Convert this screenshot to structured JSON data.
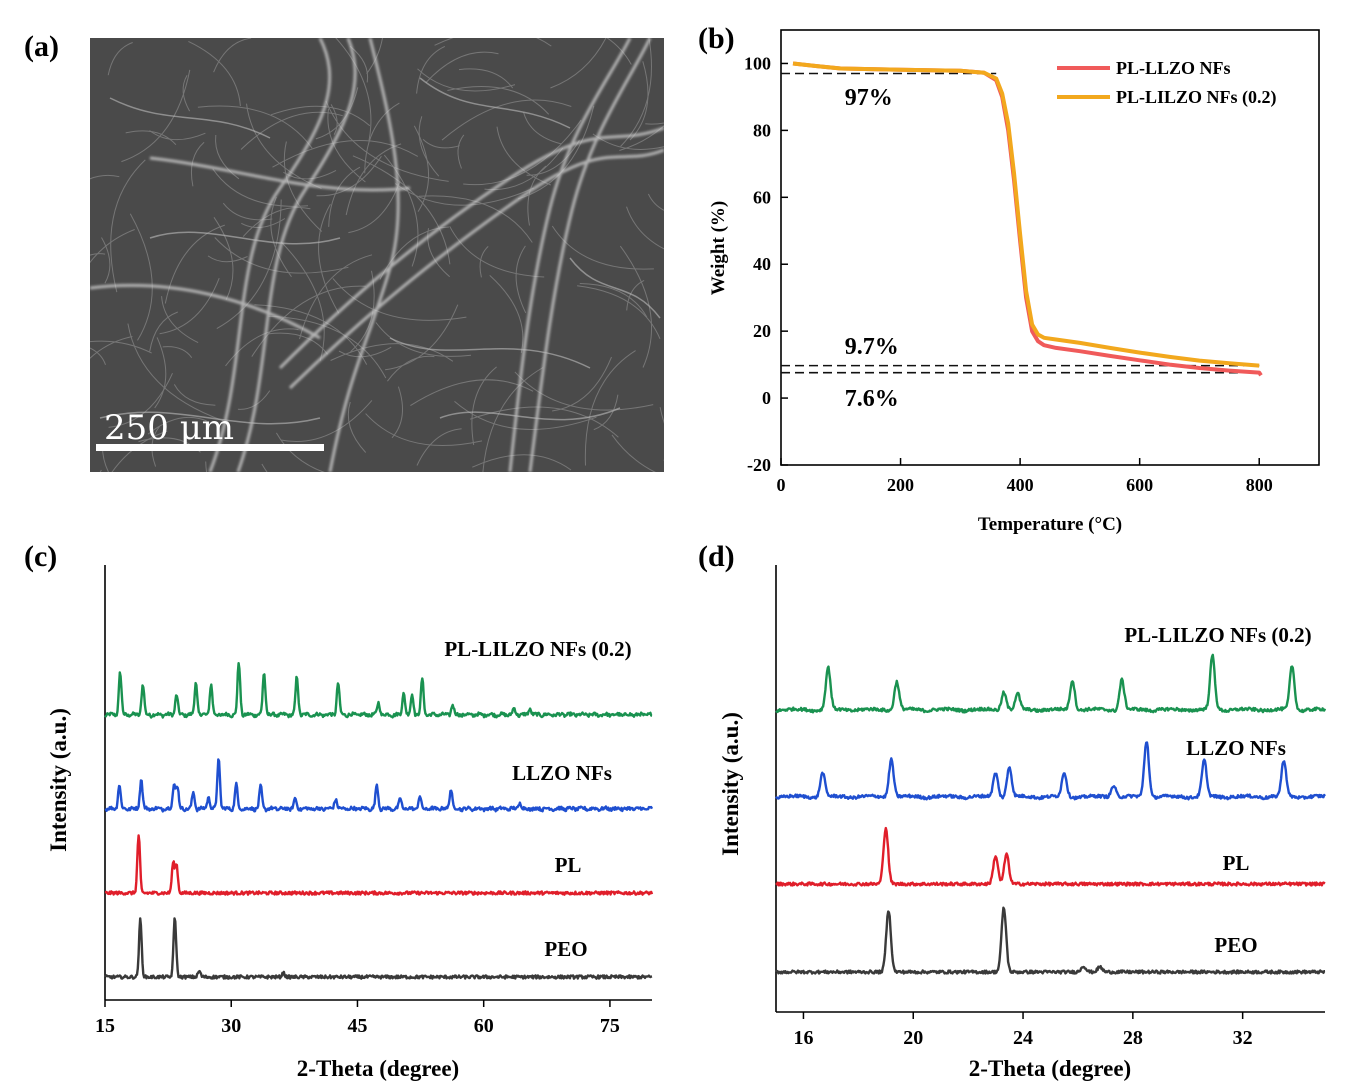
{
  "panels": {
    "a": "(a)",
    "b": "(b)",
    "c": "(c)",
    "d": "(d)"
  },
  "sem": {
    "scale_label": "250 μm"
  },
  "colors": {
    "red": "#f05a5a",
    "orange": "#f2a81d",
    "green": "#1a9250",
    "blue": "#1f4fd0",
    "xrd_red": "#e01e2a",
    "gray": "#3a3a3a"
  },
  "chart_data": [
    {
      "id": "b",
      "type": "line",
      "xlabel": "Temperature (°C)",
      "ylabel": "Weight (%)",
      "xlim": [
        0,
        900
      ],
      "ylim": [
        -20,
        110
      ],
      "xticks": [
        0,
        200,
        400,
        600,
        800
      ],
      "yticks": [
        -20,
        0,
        20,
        40,
        60,
        80,
        100
      ],
      "legend_position": "top-right",
      "series": [
        {
          "name": "PL-LLZO NFs",
          "color": "#f05a5a",
          "x": [
            20,
            60,
            100,
            150,
            200,
            250,
            300,
            340,
            360,
            370,
            380,
            390,
            400,
            410,
            420,
            430,
            440,
            460,
            500,
            550,
            600,
            650,
            700,
            750,
            800,
            803
          ],
          "y": [
            100,
            99.2,
            98.5,
            98.3,
            98.1,
            98,
            97.8,
            97.2,
            95,
            90,
            80,
            65,
            47,
            30,
            20,
            17,
            15.8,
            15,
            14,
            12.6,
            11.3,
            10,
            9,
            8.2,
            7.6,
            6.8
          ]
        },
        {
          "name": "PL-LILZO NFs (0.2)",
          "color": "#f2a81d",
          "x": [
            20,
            60,
            100,
            150,
            200,
            250,
            300,
            340,
            360,
            370,
            380,
            390,
            400,
            410,
            420,
            430,
            440,
            460,
            500,
            550,
            600,
            650,
            700,
            750,
            800
          ],
          "y": [
            100,
            99.2,
            98.5,
            98.3,
            98.1,
            98,
            97.8,
            97.2,
            95.5,
            91,
            82,
            67,
            49,
            32,
            22,
            19,
            18,
            17.5,
            16.5,
            15,
            13.6,
            12.3,
            11.2,
            10.4,
            9.7
          ]
        }
      ],
      "reference_lines": [
        97,
        9.7,
        7.6
      ],
      "annotations": [
        {
          "text": "97%",
          "x": 130,
          "y": 90
        },
        {
          "text": "9.7%",
          "x": 130,
          "y": 15.5
        },
        {
          "text": "7.6%",
          "x": 130,
          "y": 0
        }
      ]
    },
    {
      "id": "c",
      "type": "line",
      "xlabel": "2-Theta (degree)",
      "ylabel": "Intensity (a.u.)",
      "xlim": [
        15,
        80
      ],
      "xticks": [
        15,
        30,
        45,
        60,
        75
      ],
      "series": [
        {
          "name": "PL-LILZO NFs (0.2)",
          "color": "#1a9250",
          "peaks": [
            [
              16.8,
              42
            ],
            [
              19.5,
              30
            ],
            [
              23.5,
              20
            ],
            [
              25.8,
              32
            ],
            [
              27.6,
              30
            ],
            [
              30.9,
              52
            ],
            [
              33.9,
              42
            ],
            [
              37.8,
              38
            ],
            [
              42.7,
              32
            ],
            [
              47.5,
              12
            ],
            [
              50.5,
              22
            ],
            [
              51.5,
              20
            ],
            [
              52.7,
              36
            ],
            [
              56.3,
              10
            ],
            [
              63.6,
              6
            ],
            [
              65.5,
              6
            ]
          ]
        },
        {
          "name": "LLZO NFs",
          "color": "#1f4fd0",
          "peaks": [
            [
              16.7,
              24
            ],
            [
              19.3,
              30
            ],
            [
              23.2,
              24
            ],
            [
              23.6,
              22
            ],
            [
              25.5,
              16
            ],
            [
              27.3,
              12
            ],
            [
              28.5,
              50
            ],
            [
              30.6,
              24
            ],
            [
              33.5,
              22
            ],
            [
              37.6,
              10
            ],
            [
              42.4,
              10
            ],
            [
              47.3,
              24
            ],
            [
              50.1,
              10
            ],
            [
              52.4,
              12
            ],
            [
              56.1,
              20
            ],
            [
              64.3,
              6
            ]
          ]
        },
        {
          "name": "PL",
          "color": "#e01e2a",
          "peaks": [
            [
              19.0,
              58
            ],
            [
              23.1,
              30
            ],
            [
              23.5,
              28
            ]
          ]
        },
        {
          "name": "PEO",
          "color": "#3a3a3a",
          "peaks": [
            [
              19.2,
              58
            ],
            [
              23.3,
              60
            ],
            [
              26.2,
              6
            ],
            [
              36.2,
              4
            ]
          ]
        }
      ]
    },
    {
      "id": "d",
      "type": "line",
      "xlabel": "2-Theta (degree)",
      "ylabel": "Intensity (a.u.)",
      "xlim": [
        15,
        35
      ],
      "xticks": [
        16,
        20,
        24,
        28,
        32
      ],
      "series": [
        {
          "name": "PL-LILZO NFs (0.2)",
          "color": "#1a9250",
          "peaks": [
            [
              16.9,
              42
            ],
            [
              19.4,
              28
            ],
            [
              23.3,
              18
            ],
            [
              23.8,
              16
            ],
            [
              25.8,
              30
            ],
            [
              27.6,
              30
            ],
            [
              30.9,
              54
            ],
            [
              33.8,
              44
            ]
          ]
        },
        {
          "name": "LLZO NFs",
          "color": "#1f4fd0",
          "peaks": [
            [
              16.7,
              24
            ],
            [
              19.2,
              38
            ],
            [
              23.0,
              24
            ],
            [
              23.5,
              30
            ],
            [
              25.5,
              24
            ],
            [
              27.3,
              12
            ],
            [
              28.5,
              56
            ],
            [
              30.6,
              36
            ],
            [
              33.5,
              36
            ]
          ]
        },
        {
          "name": "PL",
          "color": "#e01e2a",
          "peaks": [
            [
              19.0,
              56
            ],
            [
              23.0,
              28
            ],
            [
              23.4,
              30
            ]
          ]
        },
        {
          "name": "PEO",
          "color": "#3a3a3a",
          "peaks": [
            [
              19.1,
              62
            ],
            [
              23.3,
              64
            ],
            [
              26.2,
              6
            ],
            [
              26.8,
              5
            ]
          ]
        }
      ]
    }
  ]
}
